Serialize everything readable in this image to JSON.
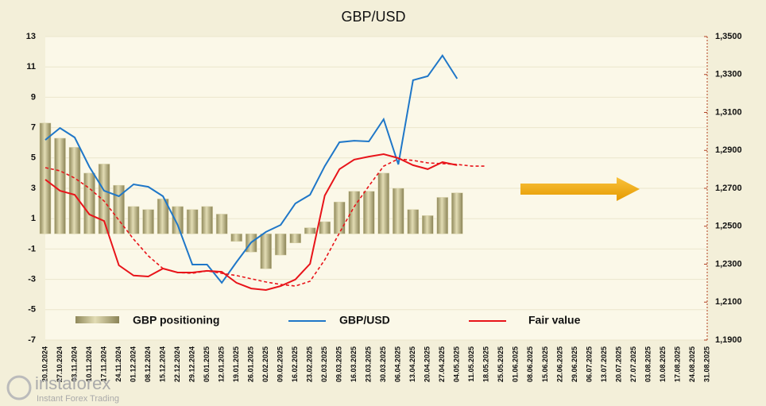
{
  "chart_data": {
    "type": "combo",
    "title": "GBP/USD",
    "categories": [
      "20.10.2024",
      "27.10.2024",
      "03.11.2024",
      "10.11.2024",
      "17.11.2024",
      "24.11.2024",
      "01.12.2024",
      "08.12.2024",
      "15.12.2024",
      "22.12.2024",
      "29.12.2024",
      "05.01.2025",
      "12.01.2025",
      "19.01.2025",
      "26.01.2025",
      "02.02.2025",
      "09.02.2025",
      "16.02.2025",
      "23.02.2025",
      "02.03.2025",
      "09.03.2025",
      "16.03.2025",
      "23.03.2025",
      "30.03.2025",
      "06.04.2025",
      "13.04.2025",
      "20.04.2025",
      "27.04.2025",
      "04.05.2025",
      "11.05.2025",
      "18.05.2025",
      "25.05.2025",
      "01.06.2025",
      "08.06.2025",
      "15.06.2025",
      "22.06.2025",
      "29.06.2025",
      "06.07.2025",
      "13.07.2025",
      "20.07.2025",
      "27.07.2025",
      "03.08.2025",
      "10.08.2025",
      "17.08.2025",
      "24.08.2025",
      "31.08.2025"
    ],
    "series": [
      {
        "name": "GBP positioning",
        "type": "bar",
        "color": "#b8b07c",
        "values": [
          7.3,
          6.3,
          5.7,
          4.0,
          4.6,
          3.2,
          1.8,
          1.6,
          2.3,
          1.8,
          1.6,
          1.8,
          1.3,
          -0.5,
          -1.2,
          -2.3,
          -1.4,
          -0.6,
          0.4,
          0.8,
          2.1,
          2.8,
          2.8,
          4.0,
          3.0,
          1.6,
          1.2,
          2.4,
          2.7,
          null,
          null,
          null,
          null,
          null,
          null,
          null,
          null,
          null,
          null,
          null,
          null,
          null,
          null,
          null,
          null,
          null
        ]
      },
      {
        "name": "GBP/USD",
        "type": "line",
        "axis": "y2",
        "color": "#1f77c8",
        "values": [
          1.2955,
          1.3018,
          1.2968,
          1.2813,
          1.2687,
          1.2658,
          1.2721,
          1.2708,
          1.2658,
          1.2507,
          1.2298,
          1.2298,
          1.2202,
          1.2311,
          1.2415,
          1.247,
          1.2507,
          1.262,
          1.2666,
          1.2817,
          1.2943,
          1.2951,
          1.2947,
          1.3064,
          1.2826,
          1.327,
          1.3291,
          1.34,
          1.3278,
          null,
          null,
          null,
          null,
          null,
          null,
          null,
          null,
          null,
          null,
          null,
          null,
          null,
          null,
          null,
          null,
          null
        ]
      },
      {
        "name": "Fair value",
        "type": "line",
        "axis": "y2",
        "color": "#e8141a",
        "values": [
          1.2746,
          1.2687,
          1.2666,
          1.2562,
          1.2528,
          1.2294,
          1.224,
          1.2235,
          1.2277,
          1.2256,
          1.2256,
          1.2265,
          1.226,
          1.2202,
          1.2172,
          1.2164,
          1.2185,
          1.2219,
          1.2302,
          1.2662,
          1.2801,
          1.2851,
          1.2867,
          1.288,
          1.2859,
          1.2822,
          1.2801,
          1.2838,
          1.2822,
          null,
          null,
          null,
          null,
          null,
          null,
          null,
          null,
          null,
          null,
          null,
          null,
          null,
          null,
          null,
          null,
          null
        ]
      },
      {
        "type": "line",
        "axis": "y2",
        "color": "#e8141a",
        "dashed": true,
        "values": [
          1.2809,
          1.2792,
          1.2754,
          1.27,
          1.2633,
          1.2532,
          1.2432,
          1.2344,
          1.2277,
          1.2256,
          1.2252,
          1.2265,
          1.2252,
          1.224,
          1.2223,
          1.2206,
          1.2193,
          1.2185,
          1.221,
          1.2323,
          1.2465,
          1.2603,
          1.2712,
          1.2817,
          1.2855,
          1.2847,
          1.2834,
          1.283,
          1.2826,
          1.2817,
          1.2817,
          null,
          null,
          null,
          null,
          null,
          null,
          null,
          null,
          null,
          null,
          null,
          null,
          null,
          null,
          null
        ]
      }
    ],
    "ylim": [
      -7,
      13
    ],
    "yticks": [
      13,
      11,
      9,
      7,
      5,
      3,
      1,
      -1,
      -3,
      -5,
      -7
    ],
    "y2lim": [
      1.19,
      1.35
    ],
    "y2ticks": [
      {
        "value": 1.35,
        "label": "1,3500"
      },
      {
        "value": 1.33,
        "label": "1,3300"
      },
      {
        "value": 1.31,
        "label": "1,3100"
      },
      {
        "value": 1.29,
        "label": "1,2900"
      },
      {
        "value": 1.27,
        "label": "1,2700"
      },
      {
        "value": 1.25,
        "label": "1,2500"
      },
      {
        "value": 1.23,
        "label": "1,2300"
      },
      {
        "value": 1.21,
        "label": "1,2100"
      },
      {
        "value": 1.19,
        "label": "1,1900"
      }
    ],
    "grid": true
  },
  "watermark": {
    "brand": "instaforex",
    "tagline": "Instant Forex Trading"
  }
}
